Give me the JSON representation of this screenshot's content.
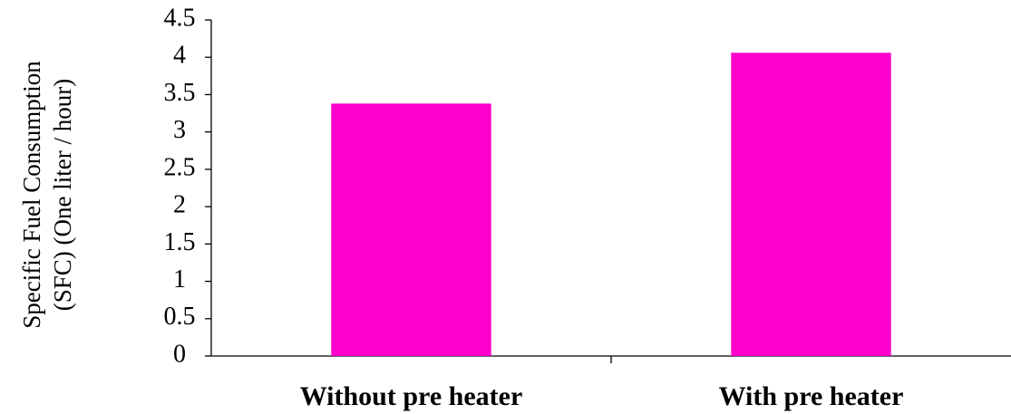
{
  "chart_data": {
    "type": "bar",
    "ylabel": [
      "Specific Fuel Consumption",
      "(SFC) (One  liter / hour)"
    ],
    "categories": [
      "Without pre heater",
      "With pre heater"
    ],
    "values": [
      3.38,
      4.06
    ],
    "color": "#ff00cc",
    "ylim": [
      0,
      4.5
    ],
    "yticks": [
      0,
      0.5,
      1,
      1.5,
      2,
      2.5,
      3,
      3.5,
      4,
      4.5
    ],
    "grid": false
  }
}
